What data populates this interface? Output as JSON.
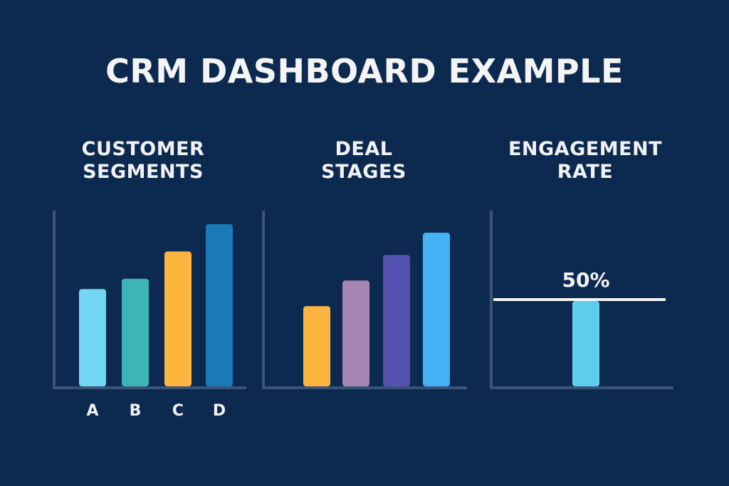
{
  "title": "CRM DASHBOARD EXAMPLE",
  "chart_data": [
    {
      "type": "bar",
      "title_lines": [
        "CUSTOMER",
        "SEGMENTS"
      ],
      "categories": [
        "A",
        "B",
        "C",
        "D"
      ],
      "values": [
        57,
        63,
        79,
        95
      ],
      "colors": [
        "#72d6f2",
        "#3db5b7",
        "#fdb53f",
        "#1b78b9"
      ],
      "ylim": [
        0,
        100
      ],
      "grid": false,
      "legend": "none"
    },
    {
      "type": "bar",
      "title_lines": [
        "DEAL",
        "STAGES"
      ],
      "categories": [
        "",
        "",
        "",
        ""
      ],
      "values": [
        47,
        62,
        77,
        90
      ],
      "colors": [
        "#fdb53f",
        "#a684b3",
        "#5451b1",
        "#43b2f5"
      ],
      "ylim": [
        0,
        100
      ],
      "grid": false,
      "legend": "none"
    },
    {
      "type": "bar",
      "title_lines": [
        "ENGAGEMENT",
        "RATE"
      ],
      "categories": [
        ""
      ],
      "values": [
        50
      ],
      "colors": [
        "#5fcdec"
      ],
      "ylim": [
        0,
        100
      ],
      "reference_line": 50,
      "data_label": "50%",
      "grid": false,
      "legend": "none"
    }
  ]
}
